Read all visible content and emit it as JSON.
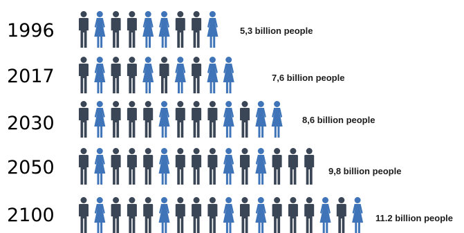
{
  "chart_data": {
    "type": "pictograph",
    "unit": "billion people",
    "rows": [
      {
        "year": "1996",
        "value": 5.3,
        "label": "5,3 billion people",
        "figures": [
          "m",
          "f",
          "m",
          "m",
          "f",
          "f",
          "m",
          "m",
          "f"
        ]
      },
      {
        "year": "2017",
        "value": 7.6,
        "label": "7,6 billion people",
        "figures": [
          "m",
          "f",
          "m",
          "m",
          "f",
          "m",
          "f",
          "m",
          "f",
          "f"
        ]
      },
      {
        "year": "2030",
        "value": 8.6,
        "label": "8,6 billion people",
        "figures": [
          "m",
          "f",
          "m",
          "m",
          "m",
          "f",
          "m",
          "m",
          "m",
          "f",
          "m",
          "f",
          "f"
        ]
      },
      {
        "year": "2050",
        "value": 9.8,
        "label": "9,8 billion people",
        "figures": [
          "m",
          "f",
          "m",
          "m",
          "m",
          "f",
          "m",
          "m",
          "m",
          "f",
          "m",
          "f",
          "m",
          "m",
          "m"
        ]
      },
      {
        "year": "2100",
        "value": 11.2,
        "label": "11.2 billion people",
        "figures": [
          "m",
          "f",
          "m",
          "m",
          "m",
          "f",
          "m",
          "m",
          "m",
          "f",
          "m",
          "f",
          "m",
          "m",
          "m",
          "f",
          "m",
          "f"
        ]
      }
    ],
    "colors": {
      "male": "#3a4556",
      "female": "#3f74b8"
    }
  }
}
